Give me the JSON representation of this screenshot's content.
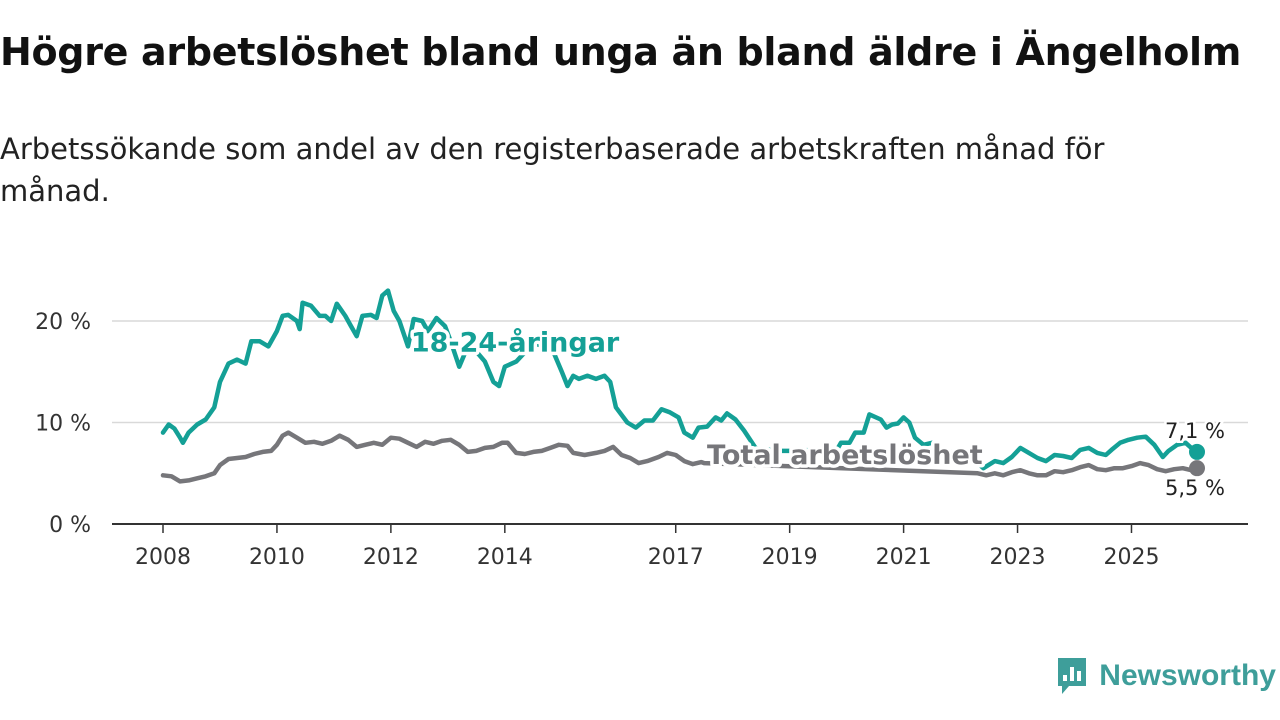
{
  "title": "Högre arbetslöshet bland unga än bland äldre i Ängelholm",
  "subtitle": "Arbetssökande som andel av den registerbaserade arbetskraften månad för månad.",
  "brand": {
    "name": "Newsworthy",
    "icon": "newsworthy-logo-icon",
    "color": "#3e9e9a"
  },
  "chart_data": {
    "type": "line",
    "title": "Högre arbetslöshet bland unga än bland äldre i Ängelholm",
    "xlabel": "",
    "ylabel": "",
    "xlim": [
      2008.0,
      2026.15
    ],
    "ylim": [
      0,
      22.5
    ],
    "y_ticks": [
      0,
      10,
      20
    ],
    "y_tick_labels": [
      "0 %",
      "10 %",
      "20 %"
    ],
    "x_ticks": [
      2008,
      2010,
      2012,
      2014,
      2017,
      2019,
      2021,
      2023,
      2025
    ],
    "x_tick_labels": [
      "2008",
      "2010",
      "2012",
      "2014",
      "2017",
      "2019",
      "2021",
      "2023",
      "2025"
    ],
    "grid": true,
    "series": [
      {
        "name": "18-24-åringar",
        "label": "18-24-åringar",
        "color": "#14a096",
        "end_value_label": "7,1 %",
        "points": [
          [
            2008.0,
            9.0
          ],
          [
            2008.1,
            9.8
          ],
          [
            2008.2,
            9.4
          ],
          [
            2008.3,
            8.5
          ],
          [
            2008.35,
            8.0
          ],
          [
            2008.45,
            9.0
          ],
          [
            2008.6,
            9.8
          ],
          [
            2008.75,
            10.3
          ],
          [
            2008.9,
            11.5
          ],
          [
            2009.0,
            14.0
          ],
          [
            2009.15,
            15.8
          ],
          [
            2009.3,
            16.2
          ],
          [
            2009.45,
            15.8
          ],
          [
            2009.55,
            18.0
          ],
          [
            2009.7,
            18.0
          ],
          [
            2009.85,
            17.5
          ],
          [
            2010.0,
            19.0
          ],
          [
            2010.1,
            20.5
          ],
          [
            2010.2,
            20.6
          ],
          [
            2010.35,
            20.0
          ],
          [
            2010.4,
            19.2
          ],
          [
            2010.45,
            21.8
          ],
          [
            2010.6,
            21.5
          ],
          [
            2010.75,
            20.5
          ],
          [
            2010.85,
            20.5
          ],
          [
            2010.95,
            20.0
          ],
          [
            2011.05,
            21.7
          ],
          [
            2011.2,
            20.5
          ],
          [
            2011.3,
            19.5
          ],
          [
            2011.4,
            18.5
          ],
          [
            2011.5,
            20.5
          ],
          [
            2011.65,
            20.6
          ],
          [
            2011.75,
            20.3
          ],
          [
            2011.85,
            22.5
          ],
          [
            2011.95,
            23.0
          ],
          [
            2012.05,
            21.0
          ],
          [
            2012.15,
            20.0
          ],
          [
            2012.3,
            17.5
          ],
          [
            2012.4,
            20.2
          ],
          [
            2012.55,
            20.0
          ],
          [
            2012.65,
            19.0
          ],
          [
            2012.8,
            20.3
          ],
          [
            2012.95,
            19.5
          ],
          [
            2013.05,
            18.0
          ],
          [
            2013.2,
            15.5
          ],
          [
            2013.35,
            17.5
          ],
          [
            2013.5,
            17.0
          ],
          [
            2013.65,
            16.0
          ],
          [
            2013.8,
            14.0
          ],
          [
            2013.9,
            13.6
          ],
          [
            2014.0,
            15.5
          ],
          [
            2014.2,
            16.0
          ],
          [
            2014.5,
            17.8
          ],
          [
            2014.7,
            17.5
          ],
          [
            2014.85,
            17.0
          ],
          [
            2015.0,
            15.0
          ],
          [
            2015.1,
            13.6
          ],
          [
            2015.2,
            14.6
          ],
          [
            2015.3,
            14.3
          ],
          [
            2015.45,
            14.6
          ],
          [
            2015.6,
            14.3
          ],
          [
            2015.75,
            14.6
          ],
          [
            2015.85,
            14.0
          ],
          [
            2015.95,
            11.5
          ],
          [
            2016.15,
            10.0
          ],
          [
            2016.3,
            9.5
          ],
          [
            2016.45,
            10.2
          ],
          [
            2016.6,
            10.2
          ],
          [
            2016.75,
            11.3
          ],
          [
            2016.9,
            11.0
          ],
          [
            2017.05,
            10.5
          ],
          [
            2017.15,
            9.0
          ],
          [
            2017.3,
            8.5
          ],
          [
            2017.4,
            9.5
          ],
          [
            2017.55,
            9.6
          ],
          [
            2017.7,
            10.5
          ],
          [
            2017.8,
            10.2
          ],
          [
            2017.9,
            10.9
          ],
          [
            2018.05,
            10.3
          ],
          [
            2018.2,
            9.2
          ],
          [
            2018.4,
            7.5
          ],
          [
            2018.8,
            7.2
          ],
          [
            2019.1,
            7.2
          ],
          [
            2019.4,
            7.3
          ],
          [
            2019.6,
            7.0
          ],
          [
            2019.8,
            7.0
          ],
          [
            2019.9,
            8.0
          ],
          [
            2020.05,
            8.0
          ],
          [
            2020.15,
            9.0
          ],
          [
            2020.3,
            9.0
          ],
          [
            2020.4,
            10.8
          ],
          [
            2020.6,
            10.3
          ],
          [
            2020.7,
            9.5
          ],
          [
            2020.8,
            9.8
          ],
          [
            2020.9,
            9.9
          ],
          [
            2021.0,
            10.5
          ],
          [
            2021.1,
            10.0
          ],
          [
            2021.2,
            8.5
          ],
          [
            2021.35,
            7.8
          ],
          [
            2021.5,
            8.0
          ],
          [
            2021.7,
            7.3
          ],
          [
            2021.9,
            7.0
          ],
          [
            2022.1,
            7.0
          ],
          [
            2022.4,
            5.5
          ],
          [
            2022.6,
            6.2
          ],
          [
            2022.75,
            6.0
          ],
          [
            2022.9,
            6.6
          ],
          [
            2023.05,
            7.5
          ],
          [
            2023.2,
            7.0
          ],
          [
            2023.35,
            6.5
          ],
          [
            2023.5,
            6.2
          ],
          [
            2023.65,
            6.8
          ],
          [
            2023.8,
            6.7
          ],
          [
            2023.95,
            6.5
          ],
          [
            2024.1,
            7.3
          ],
          [
            2024.25,
            7.5
          ],
          [
            2024.4,
            7.0
          ],
          [
            2024.55,
            6.8
          ],
          [
            2024.65,
            7.3
          ],
          [
            2024.8,
            8.0
          ],
          [
            2024.95,
            8.3
          ],
          [
            2025.1,
            8.5
          ],
          [
            2025.25,
            8.6
          ],
          [
            2025.4,
            7.8
          ],
          [
            2025.55,
            6.6
          ],
          [
            2025.65,
            7.2
          ],
          [
            2025.8,
            7.8
          ],
          [
            2025.95,
            8.0
          ],
          [
            2026.05,
            7.5
          ],
          [
            2026.15,
            7.1
          ]
        ]
      },
      {
        "name": "Total arbetslöshet",
        "label": "Total arbetslöshet",
        "color": "#76767a",
        "end_value_label": "5,5 %",
        "points": [
          [
            2008.0,
            4.8
          ],
          [
            2008.15,
            4.7
          ],
          [
            2008.3,
            4.2
          ],
          [
            2008.45,
            4.3
          ],
          [
            2008.6,
            4.5
          ],
          [
            2008.75,
            4.7
          ],
          [
            2008.9,
            5.0
          ],
          [
            2009.0,
            5.8
          ],
          [
            2009.15,
            6.4
          ],
          [
            2009.3,
            6.5
          ],
          [
            2009.45,
            6.6
          ],
          [
            2009.6,
            6.9
          ],
          [
            2009.75,
            7.1
          ],
          [
            2009.9,
            7.2
          ],
          [
            2010.0,
            7.8
          ],
          [
            2010.1,
            8.7
          ],
          [
            2010.2,
            9.0
          ],
          [
            2010.35,
            8.5
          ],
          [
            2010.5,
            8.0
          ],
          [
            2010.65,
            8.1
          ],
          [
            2010.8,
            7.9
          ],
          [
            2010.95,
            8.2
          ],
          [
            2011.1,
            8.7
          ],
          [
            2011.25,
            8.3
          ],
          [
            2011.4,
            7.6
          ],
          [
            2011.55,
            7.8
          ],
          [
            2011.7,
            8.0
          ],
          [
            2011.85,
            7.8
          ],
          [
            2012.0,
            8.5
          ],
          [
            2012.15,
            8.4
          ],
          [
            2012.3,
            8.0
          ],
          [
            2012.45,
            7.6
          ],
          [
            2012.6,
            8.1
          ],
          [
            2012.75,
            7.9
          ],
          [
            2012.9,
            8.2
          ],
          [
            2013.05,
            8.3
          ],
          [
            2013.2,
            7.8
          ],
          [
            2013.35,
            7.1
          ],
          [
            2013.5,
            7.2
          ],
          [
            2013.65,
            7.5
          ],
          [
            2013.8,
            7.6
          ],
          [
            2013.95,
            8.0
          ],
          [
            2014.05,
            8.0
          ],
          [
            2014.2,
            7.0
          ],
          [
            2014.35,
            6.9
          ],
          [
            2014.5,
            7.1
          ],
          [
            2014.65,
            7.2
          ],
          [
            2014.8,
            7.5
          ],
          [
            2014.95,
            7.8
          ],
          [
            2015.1,
            7.7
          ],
          [
            2015.2,
            7.0
          ],
          [
            2015.4,
            6.8
          ],
          [
            2015.6,
            7.0
          ],
          [
            2015.75,
            7.2
          ],
          [
            2015.9,
            7.6
          ],
          [
            2016.05,
            6.8
          ],
          [
            2016.2,
            6.5
          ],
          [
            2016.35,
            6.0
          ],
          [
            2016.5,
            6.2
          ],
          [
            2016.7,
            6.6
          ],
          [
            2016.85,
            7.0
          ],
          [
            2017.0,
            6.8
          ],
          [
            2017.15,
            6.2
          ],
          [
            2017.3,
            5.9
          ],
          [
            2017.45,
            6.1
          ],
          [
            2017.5,
            6.0
          ],
          [
            2022.3,
            5.0
          ],
          [
            2022.45,
            4.8
          ],
          [
            2022.6,
            5.0
          ],
          [
            2022.75,
            4.8
          ],
          [
            2022.9,
            5.1
          ],
          [
            2023.05,
            5.3
          ],
          [
            2023.2,
            5.0
          ],
          [
            2023.35,
            4.8
          ],
          [
            2023.5,
            4.8
          ],
          [
            2023.65,
            5.2
          ],
          [
            2023.8,
            5.1
          ],
          [
            2023.95,
            5.3
          ],
          [
            2024.1,
            5.6
          ],
          [
            2024.25,
            5.8
          ],
          [
            2024.4,
            5.4
          ],
          [
            2024.55,
            5.3
          ],
          [
            2024.7,
            5.5
          ],
          [
            2024.85,
            5.5
          ],
          [
            2025.0,
            5.7
          ],
          [
            2025.15,
            6.0
          ],
          [
            2025.3,
            5.8
          ],
          [
            2025.45,
            5.4
          ],
          [
            2025.6,
            5.2
          ],
          [
            2025.75,
            5.4
          ],
          [
            2025.9,
            5.5
          ],
          [
            2026.05,
            5.3
          ],
          [
            2026.15,
            5.5
          ]
        ]
      }
    ]
  }
}
